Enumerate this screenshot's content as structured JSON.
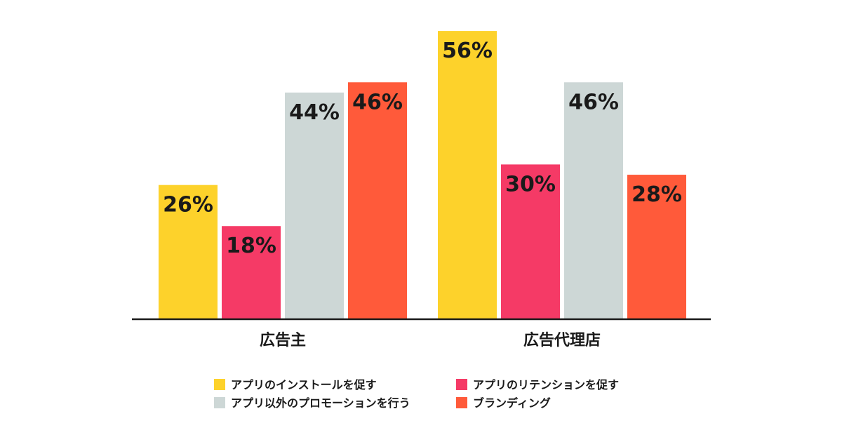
{
  "chart_data": {
    "type": "bar",
    "categories": [
      "広告主",
      "広告代理店"
    ],
    "series": [
      {
        "name": "アプリのインストールを促す",
        "values": [
          26,
          56
        ],
        "color": "#FDD22B"
      },
      {
        "name": "アプリのリテンションを促す",
        "values": [
          18,
          30
        ],
        "color": "#F53A66"
      },
      {
        "name": "アプリ以外のプロモーションを行う",
        "values": [
          44,
          46
        ],
        "color": "#CDD7D6"
      },
      {
        "name": "ブランディング",
        "values": [
          46,
          28
        ],
        "color": "#FF5A3A"
      }
    ],
    "value_suffix": "%",
    "ylim": [
      0,
      56
    ],
    "grid": false,
    "legend_position": "bottom"
  }
}
